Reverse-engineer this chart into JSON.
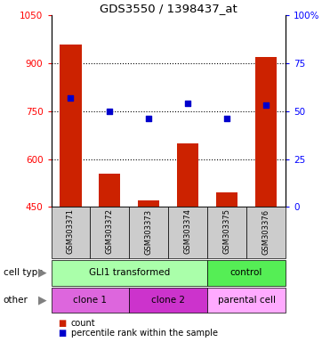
{
  "title": "GDS3550 / 1398437_at",
  "samples": [
    "GSM303371",
    "GSM303372",
    "GSM303373",
    "GSM303374",
    "GSM303375",
    "GSM303376"
  ],
  "counts": [
    960,
    555,
    470,
    650,
    495,
    920
  ],
  "percentiles": [
    57,
    50,
    46,
    54,
    46,
    53
  ],
  "ylim_left": [
    450,
    1050
  ],
  "ylim_right": [
    0,
    100
  ],
  "yticks_left": [
    450,
    600,
    750,
    900,
    1050
  ],
  "yticks_right": [
    0,
    25,
    50,
    75,
    100
  ],
  "bar_color": "#cc2200",
  "scatter_color": "#0000cc",
  "cell_type_labels": [
    [
      "GLI1 transformed",
      0,
      4
    ],
    [
      "control",
      4,
      6
    ]
  ],
  "cell_type_colors": [
    "#aaffaa",
    "#55ee55"
  ],
  "other_labels": [
    [
      "clone 1",
      0,
      2
    ],
    [
      "clone 2",
      2,
      4
    ],
    [
      "parental cell",
      4,
      6
    ]
  ],
  "other_colors": [
    "#dd66dd",
    "#cc33cc",
    "#ffaaff"
  ],
  "bg_color": "#cccccc",
  "legend_count_color": "#cc2200",
  "legend_pct_color": "#0000cc",
  "grid_yticks": [
    600,
    750,
    900
  ]
}
